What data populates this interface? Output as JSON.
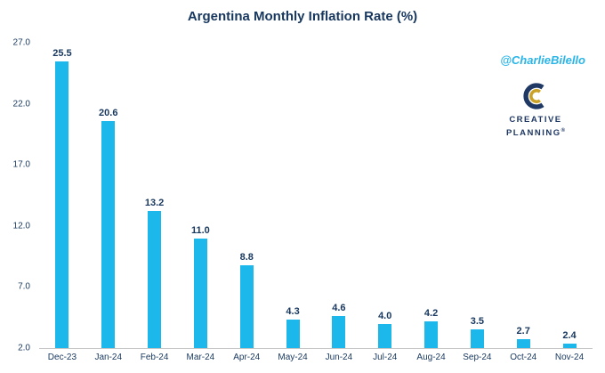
{
  "title": "Argentina Monthly Inflation Rate (%)",
  "attribution": "@CharlieBilello",
  "logo": {
    "line1": "CREATIVE",
    "line2": "PLANNING",
    "reg": "®"
  },
  "colors": {
    "bar": "#1CB8EC",
    "title_navy": "#17375E",
    "logo_navy": "#1F3864",
    "logo_gold": "#C9A227",
    "attribution_cyan": "#29B5E8",
    "axis_line": "#C6C6C6"
  },
  "chart_data": {
    "type": "bar",
    "title": "Argentina Monthly Inflation Rate (%)",
    "categories": [
      "Dec-23",
      "Jan-24",
      "Feb-24",
      "Mar-24",
      "Apr-24",
      "May-24",
      "Jun-24",
      "Jul-24",
      "Aug-24",
      "Sep-24",
      "Oct-24",
      "Nov-24"
    ],
    "values": [
      25.5,
      20.6,
      13.2,
      11.0,
      8.8,
      4.3,
      4.6,
      4.0,
      4.2,
      3.5,
      2.7,
      2.4
    ],
    "xlabel": "",
    "ylabel": "",
    "ylim": [
      2.0,
      27.0
    ],
    "yticks": [
      2.0,
      7.0,
      12.0,
      17.0,
      22.0,
      27.0
    ],
    "grid": false,
    "legend": "none",
    "bar_color": "#1CB8EC"
  }
}
